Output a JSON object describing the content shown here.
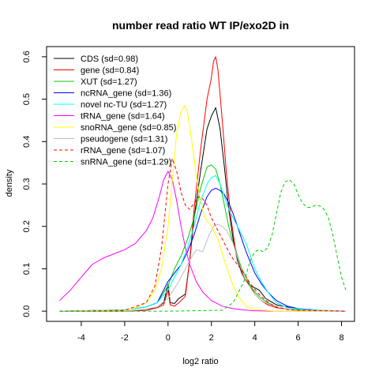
{
  "chart_data": {
    "type": "line",
    "title": "number read ratio WT IP/exo2D in",
    "xlabel": "log2 ratio",
    "ylabel": "density",
    "xlim": [
      -5.6,
      8.6
    ],
    "ylim": [
      -0.024,
      0.624
    ],
    "xticks": [
      -4,
      -2,
      0,
      2,
      4,
      6,
      8
    ],
    "yticks": [
      0.0,
      0.1,
      0.2,
      0.3,
      0.4,
      0.5,
      0.6
    ],
    "legend_position": "top-left",
    "series": [
      {
        "name": "CDS (sd=0.98)",
        "color": "#000000",
        "dash": false,
        "x": [
          -5,
          -2,
          -1,
          -0.5,
          -0.2,
          0,
          0.1,
          0.3,
          0.5,
          0.8,
          1.0,
          1.2,
          1.5,
          1.8,
          2.0,
          2.2,
          2.4,
          2.6,
          2.8,
          3.0,
          3.2,
          3.4,
          3.6,
          3.8,
          4.0,
          4.2,
          4.5,
          5.0,
          6.0,
          7.0,
          8.2
        ],
        "y": [
          0.0,
          0.0,
          0.002,
          0.01,
          0.02,
          0.063,
          0.02,
          0.018,
          0.03,
          0.04,
          0.12,
          0.22,
          0.33,
          0.43,
          0.46,
          0.48,
          0.43,
          0.34,
          0.24,
          0.17,
          0.12,
          0.09,
          0.07,
          0.06,
          0.055,
          0.05,
          0.03,
          0.015,
          0.005,
          0.001,
          0.0
        ]
      },
      {
        "name": "gene (sd=0.84)",
        "color": "#ff0000",
        "dash": false,
        "x": [
          -5,
          -2,
          -1,
          -0.5,
          -0.2,
          0,
          0.1,
          0.3,
          0.5,
          0.8,
          1.0,
          1.2,
          1.5,
          1.8,
          2.0,
          2.1,
          2.2,
          2.3,
          2.5,
          2.7,
          2.9,
          3.1,
          3.3,
          3.5,
          3.8,
          4.0,
          4.3,
          4.6,
          5.0,
          6.0,
          8.2
        ],
        "y": [
          0.0,
          0.0,
          0.002,
          0.008,
          0.015,
          0.05,
          0.015,
          0.012,
          0.02,
          0.035,
          0.12,
          0.24,
          0.38,
          0.5,
          0.55,
          0.59,
          0.6,
          0.57,
          0.45,
          0.32,
          0.22,
          0.15,
          0.11,
          0.08,
          0.06,
          0.04,
          0.025,
          0.015,
          0.008,
          0.002,
          0.0
        ]
      },
      {
        "name": "XUT (sd=1.27)",
        "color": "#00cd00",
        "dash": false,
        "x": [
          -5,
          -2,
          -1,
          -0.5,
          0,
          0.3,
          0.6,
          0.9,
          1.2,
          1.5,
          1.8,
          2.0,
          2.2,
          2.4,
          2.6,
          2.8,
          3.0,
          3.2,
          3.4,
          3.6,
          3.8,
          4.0,
          4.3,
          4.6,
          5.0,
          5.5,
          6.5,
          8.2
        ],
        "y": [
          0.0,
          0.003,
          0.01,
          0.02,
          0.06,
          0.1,
          0.13,
          0.17,
          0.22,
          0.29,
          0.34,
          0.345,
          0.335,
          0.3,
          0.25,
          0.2,
          0.16,
          0.13,
          0.1,
          0.08,
          0.06,
          0.045,
          0.03,
          0.02,
          0.01,
          0.005,
          0.002,
          0.0
        ]
      },
      {
        "name": "ncRNA_gene (sd=1.36)",
        "color": "#0000ff",
        "dash": false,
        "x": [
          -5,
          -2,
          -1,
          -0.5,
          0,
          0.3,
          0.6,
          0.9,
          1.2,
          1.5,
          1.8,
          2.0,
          2.2,
          2.4,
          2.6,
          2.8,
          3.0,
          3.2,
          3.4,
          3.6,
          3.8,
          4.0,
          4.3,
          4.6,
          5.0,
          5.5,
          6.0,
          7.0,
          8.2
        ],
        "y": [
          0.0,
          0.003,
          0.01,
          0.02,
          0.07,
          0.09,
          0.11,
          0.14,
          0.18,
          0.23,
          0.27,
          0.285,
          0.29,
          0.285,
          0.275,
          0.255,
          0.23,
          0.2,
          0.17,
          0.14,
          0.115,
          0.09,
          0.065,
          0.045,
          0.025,
          0.012,
          0.006,
          0.002,
          0.0
        ]
      },
      {
        "name": "novel nc-TU (sd=1.27)",
        "color": "#00ffff",
        "dash": false,
        "x": [
          -5,
          -2,
          -1,
          -0.5,
          0,
          0.3,
          0.6,
          0.9,
          1.2,
          1.5,
          1.8,
          2.0,
          2.2,
          2.4,
          2.6,
          2.8,
          3.0,
          3.2,
          3.4,
          3.6,
          3.8,
          4.0,
          4.3,
          4.6,
          5.0,
          5.5,
          6.5,
          8.2
        ],
        "y": [
          0.0,
          0.003,
          0.01,
          0.02,
          0.05,
          0.08,
          0.11,
          0.15,
          0.2,
          0.26,
          0.3,
          0.315,
          0.32,
          0.3,
          0.27,
          0.24,
          0.22,
          0.2,
          0.18,
          0.16,
          0.13,
          0.1,
          0.07,
          0.045,
          0.02,
          0.008,
          0.003,
          0.0
        ]
      },
      {
        "name": "tRNA_gene (sd=1.64)",
        "color": "#ff00ff",
        "dash": false,
        "x": [
          -5,
          -4.5,
          -4,
          -3.5,
          -3.0,
          -2.5,
          -2.0,
          -1.5,
          -1.0,
          -0.7,
          -0.4,
          -0.2,
          0.0,
          0.2,
          0.4,
          0.6,
          0.8,
          1.0,
          1.3,
          1.6,
          2.0,
          2.5,
          3.0,
          3.5,
          4.0,
          5.0,
          6.0,
          8.2
        ],
        "y": [
          0.025,
          0.05,
          0.08,
          0.11,
          0.125,
          0.135,
          0.145,
          0.16,
          0.19,
          0.22,
          0.27,
          0.31,
          0.33,
          0.31,
          0.26,
          0.2,
          0.15,
          0.11,
          0.07,
          0.045,
          0.025,
          0.012,
          0.006,
          0.003,
          0.001,
          0.0,
          0.0,
          0.0
        ]
      },
      {
        "name": "snoRNA_gene (sd=0.85)",
        "color": "#ffff00",
        "dash": false,
        "x": [
          -5,
          -2,
          -1.5,
          -1.0,
          -0.6,
          -0.3,
          0.0,
          0.2,
          0.4,
          0.6,
          0.75,
          0.9,
          1.1,
          1.3,
          1.5,
          1.7,
          2.0,
          2.3,
          2.6,
          3.0,
          3.3,
          3.6,
          4.0,
          5.0,
          8.2
        ],
        "y": [
          0.0,
          0.002,
          0.008,
          0.02,
          0.05,
          0.1,
          0.2,
          0.31,
          0.42,
          0.47,
          0.485,
          0.47,
          0.4,
          0.32,
          0.26,
          0.22,
          0.2,
          0.17,
          0.12,
          0.06,
          0.03,
          0.012,
          0.004,
          0.0,
          0.0
        ]
      },
      {
        "name": "pseudogene (sd=1.31)",
        "color": "#bebebe",
        "dash": false,
        "x": [
          -5,
          -2,
          -1,
          -0.5,
          0,
          0.5,
          1.0,
          1.3,
          1.6,
          1.9,
          2.1,
          2.3,
          2.5,
          2.7,
          3.0,
          3.3,
          3.6,
          4.0,
          4.3,
          4.7,
          5.0,
          5.5,
          6.0,
          8.2
        ],
        "y": [
          0.0,
          0.0,
          0.005,
          0.01,
          0.03,
          0.07,
          0.12,
          0.145,
          0.14,
          0.18,
          0.2,
          0.205,
          0.2,
          0.19,
          0.16,
          0.11,
          0.07,
          0.04,
          0.025,
          0.015,
          0.01,
          0.005,
          0.002,
          0.0
        ]
      },
      {
        "name": "rRNA_gene (sd=1.07)",
        "color": "#ff0000",
        "dash": true,
        "x": [
          -5,
          -2,
          -1.0,
          -0.6,
          -0.3,
          0.0,
          0.2,
          0.4,
          0.6,
          0.8,
          1.0,
          1.2,
          1.4,
          1.6,
          1.8,
          2.0,
          2.3,
          2.6,
          2.9,
          3.2,
          3.5,
          3.8,
          4.1,
          4.4,
          4.7,
          5.0,
          5.5,
          6.0,
          8.2
        ],
        "y": [
          0.0,
          0.002,
          0.02,
          0.06,
          0.15,
          0.3,
          0.36,
          0.33,
          0.28,
          0.25,
          0.24,
          0.255,
          0.27,
          0.265,
          0.25,
          0.22,
          0.19,
          0.16,
          0.13,
          0.11,
          0.09,
          0.065,
          0.045,
          0.03,
          0.018,
          0.01,
          0.004,
          0.002,
          0.0
        ]
      },
      {
        "name": "snRNA_gene (sd=1.29)",
        "color": "#00cd00",
        "dash": true,
        "x": [
          -5,
          0,
          2.5,
          3.0,
          3.5,
          3.8,
          4.0,
          4.2,
          4.4,
          4.6,
          4.8,
          5.0,
          5.2,
          5.4,
          5.6,
          5.8,
          6.0,
          6.2,
          6.4,
          6.6,
          6.8,
          7.0,
          7.2,
          7.4,
          7.6,
          7.8,
          8.0,
          8.2
        ],
        "y": [
          0.0,
          0.0,
          0.002,
          0.02,
          0.07,
          0.12,
          0.14,
          0.145,
          0.14,
          0.15,
          0.18,
          0.23,
          0.28,
          0.305,
          0.31,
          0.3,
          0.275,
          0.255,
          0.245,
          0.245,
          0.25,
          0.248,
          0.24,
          0.22,
          0.18,
          0.13,
          0.08,
          0.05
        ]
      }
    ]
  }
}
